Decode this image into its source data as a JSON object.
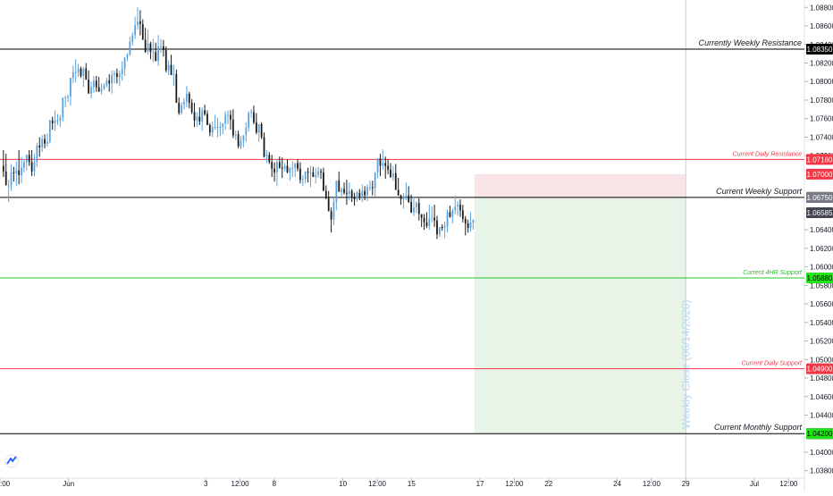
{
  "chart_data": {
    "type": "candlestick",
    "y_axis": {
      "ticks": [
        "1.08800",
        "1.08600",
        "1.08400",
        "1.08200",
        "1.08000",
        "1.07800",
        "1.07600",
        "1.07400",
        "1.07200",
        "1.06400",
        "1.06200",
        "1.06000",
        "1.05800",
        "1.05600",
        "1.05400",
        "1.05200",
        "1.05000",
        "1.04800",
        "1.04600",
        "1.04400",
        "1.04000",
        "1.03800"
      ],
      "range": [
        1.0372,
        1.0888
      ],
      "position": "right"
    },
    "x_axis": {
      "ticks": [
        {
          "label": ":00",
          "day": 0.0
        },
        {
          "label": "Jun",
          "day": 1.0
        },
        {
          "label": "3",
          "day": 3.0
        },
        {
          "label": "12:00",
          "day": 3.5
        },
        {
          "label": "8",
          "day": 4.0
        },
        {
          "label": "10",
          "day": 5.0
        },
        {
          "label": "12:00",
          "day": 5.5
        },
        {
          "label": "15",
          "day": 6.0
        },
        {
          "label": "17",
          "day": 7.0
        },
        {
          "label": "12:00",
          "day": 7.5
        },
        {
          "label": "22",
          "day": 8.0
        },
        {
          "label": "24",
          "day": 9.0
        },
        {
          "label": "12:00",
          "day": 9.5
        },
        {
          "label": "29",
          "day": 10.0
        },
        {
          "label": "Jul",
          "day": 11.0
        },
        {
          "label": "12:00",
          "day": 11.5
        }
      ],
      "range": [
        0.0,
        11.73
      ]
    },
    "levels": [
      {
        "label": "Currently Weekly Resistance",
        "price": 1.0835,
        "tag": "1.08350",
        "color": "#000000",
        "tag_bg": "#000000",
        "tag_fg": "#ffffff"
      },
      {
        "label": "Current Daily Resistance",
        "price": 1.0716,
        "tag": "1.07160",
        "color": "#f23645",
        "tag_bg": "#f23645",
        "tag_fg": "#ffffff"
      },
      {
        "label": "Current Weekly Support",
        "price": 1.0675,
        "tag": "1.06750",
        "color": "#000000",
        "tag_bg": "#000000",
        "tag_fg": "#ffffff"
      },
      {
        "label": "Current 4HR Support",
        "price": 1.0588,
        "tag": "1.05880",
        "color": "#22c52b",
        "tag_bg": "#22e41a",
        "tag_fg": "#000000"
      },
      {
        "label": "Current Daily Support",
        "price": 1.049,
        "tag": "1.04900",
        "color": "#f23645",
        "tag_bg": "#f23645",
        "tag_fg": "#ffffff"
      },
      {
        "label": "Current Monthly Support",
        "price": 1.042,
        "tag": "1.04200",
        "color": "#000000",
        "tag_bg": "#000000",
        "tag_fg": "#ffffff"
      }
    ],
    "price_tags": [
      {
        "price": 1.07,
        "tag": "1.07000",
        "bg": "#f23645",
        "fg": "#ffffff"
      },
      {
        "price": 1.0675,
        "tag": "1.06750",
        "bg": "#787b86",
        "fg": "#ffffff"
      },
      {
        "price": 1.06585,
        "tag": "1.06585",
        "bg": "#434651",
        "fg": "#ffffff"
      },
      {
        "price": 1.042,
        "tag": "1.04200",
        "bg": "#22e41a",
        "fg": "#000000"
      }
    ],
    "position_tool": {
      "entry": 1.0675,
      "stop": 1.07,
      "target": 1.042,
      "day_start": 6.92,
      "day_end": 10.0,
      "stop_color": "#f5d4d8",
      "target_color": "#d9ecd8"
    },
    "vertical_marker": {
      "label": "Weekly Close (06/14/2020)",
      "day": 10.0,
      "color": "#b7d4f0"
    },
    "candle_up_color": "#5ba3e0",
    "candle_down_color": "#1a1a1a",
    "candles": [
      [
        1.0709,
        1.0726,
        1.0697,
        1.0703
      ],
      [
        1.0703,
        1.0722,
        1.0688,
        1.0688
      ],
      [
        1.0688,
        1.0694,
        1.067,
        1.0688
      ],
      [
        1.0688,
        1.0711,
        1.0682,
        1.0702
      ],
      [
        1.0702,
        1.0708,
        1.0692,
        1.0701
      ],
      [
        1.0701,
        1.0714,
        1.0687,
        1.0704
      ],
      [
        1.0704,
        1.0726,
        1.0689,
        1.0699
      ],
      [
        1.0699,
        1.0719,
        1.069,
        1.0707
      ],
      [
        1.0707,
        1.0716,
        1.0702,
        1.0713
      ],
      [
        1.0713,
        1.0721,
        1.0704,
        1.0721
      ],
      [
        1.0721,
        1.0726,
        1.0709,
        1.0713
      ],
      [
        1.0713,
        1.0726,
        1.0698,
        1.0703
      ],
      [
        1.0703,
        1.0722,
        1.0698,
        1.0713
      ],
      [
        1.0713,
        1.0734,
        1.0708,
        1.0731
      ],
      [
        1.0731,
        1.074,
        1.0719,
        1.0729
      ],
      [
        1.0729,
        1.0742,
        1.0724,
        1.0738
      ],
      [
        1.0738,
        1.0743,
        1.0728,
        1.0733
      ],
      [
        1.0733,
        1.0744,
        1.073,
        1.0735
      ],
      [
        1.0735,
        1.0759,
        1.0733,
        1.0758
      ],
      [
        1.0758,
        1.0762,
        1.0748,
        1.0755
      ],
      [
        1.0755,
        1.0769,
        1.0747,
        1.0758
      ],
      [
        1.0758,
        1.0765,
        1.0753,
        1.0758
      ],
      [
        1.0758,
        1.0764,
        1.0751,
        1.0761
      ],
      [
        1.0761,
        1.0783,
        1.0757,
        1.0782
      ],
      [
        1.0782,
        1.0785,
        1.0772,
        1.0783
      ],
      [
        1.0783,
        1.0786,
        1.0778,
        1.0784
      ],
      [
        1.0784,
        1.0804,
        1.0774,
        1.0804
      ],
      [
        1.0804,
        1.0817,
        1.0798,
        1.081
      ],
      [
        1.081,
        1.0824,
        1.0799,
        1.081
      ],
      [
        1.081,
        1.0819,
        1.0805,
        1.0814
      ],
      [
        1.0814,
        1.0816,
        1.0804,
        1.0806
      ],
      [
        1.0806,
        1.0816,
        1.0794,
        1.0814
      ],
      [
        1.0814,
        1.082,
        1.0802,
        1.0802
      ],
      [
        1.0802,
        1.0812,
        1.0787,
        1.0787
      ],
      [
        1.0787,
        1.08,
        1.0782,
        1.0794
      ],
      [
        1.0794,
        1.0806,
        1.0788,
        1.0801
      ],
      [
        1.0801,
        1.0806,
        1.0789,
        1.0794
      ],
      [
        1.0794,
        1.0805,
        1.0789,
        1.0789
      ],
      [
        1.0789,
        1.0798,
        1.0786,
        1.0792
      ],
      [
        1.0792,
        1.0798,
        1.0791,
        1.0796
      ],
      [
        1.0796,
        1.0804,
        1.0794,
        1.0801
      ],
      [
        1.0801,
        1.0808,
        1.0789,
        1.0798
      ],
      [
        1.0798,
        1.0812,
        1.0787,
        1.0807
      ],
      [
        1.0807,
        1.0812,
        1.0798,
        1.0809
      ],
      [
        1.0809,
        1.0814,
        1.0798,
        1.0805
      ],
      [
        1.0805,
        1.0812,
        1.0795,
        1.0808
      ],
      [
        1.0808,
        1.0822,
        1.0801,
        1.0814
      ],
      [
        1.0814,
        1.0826,
        1.0806,
        1.0826
      ],
      [
        1.0826,
        1.0831,
        1.0822,
        1.0829
      ],
      [
        1.0829,
        1.0848,
        1.0828,
        1.0843
      ],
      [
        1.0843,
        1.0853,
        1.0839,
        1.085
      ],
      [
        1.085,
        1.087,
        1.0846,
        1.0861
      ],
      [
        1.0861,
        1.088,
        1.0856,
        1.0865
      ],
      [
        1.0865,
        1.0877,
        1.085,
        1.0862
      ],
      [
        1.0862,
        1.0867,
        1.0845,
        1.0845
      ],
      [
        1.0845,
        1.0858,
        1.0831,
        1.0832
      ],
      [
        1.0832,
        1.0856,
        1.0829,
        1.0841
      ],
      [
        1.0841,
        1.0843,
        1.0824,
        1.0832
      ],
      [
        1.0832,
        1.0846,
        1.0821,
        1.0832
      ],
      [
        1.0832,
        1.0842,
        1.0822,
        1.0822
      ],
      [
        1.0822,
        1.085,
        1.0817,
        1.0838
      ],
      [
        1.0838,
        1.0846,
        1.0831,
        1.0838
      ],
      [
        1.0838,
        1.0845,
        1.0827,
        1.0834
      ],
      [
        1.0834,
        1.0838,
        1.081,
        1.0812
      ],
      [
        1.0812,
        1.0823,
        1.0807,
        1.0818
      ],
      [
        1.0818,
        1.0829,
        1.0807,
        1.0807
      ],
      [
        1.0807,
        1.0818,
        1.0795,
        1.0808
      ],
      [
        1.0808,
        1.0813,
        1.0777,
        1.0777
      ],
      [
        1.0777,
        1.0783,
        1.0764,
        1.0766
      ],
      [
        1.0766,
        1.0778,
        1.0764,
        1.0775
      ],
      [
        1.0775,
        1.0782,
        1.077,
        1.0778
      ],
      [
        1.0778,
        1.0795,
        1.0772,
        1.0787
      ],
      [
        1.0787,
        1.0789,
        1.0771,
        1.0777
      ],
      [
        1.0777,
        1.0781,
        1.0765,
        1.0767
      ],
      [
        1.0767,
        1.0777,
        1.0751,
        1.0758
      ],
      [
        1.0758,
        1.0767,
        1.0751,
        1.0762
      ],
      [
        1.0762,
        1.0772,
        1.0753,
        1.0757
      ],
      [
        1.0757,
        1.0772,
        1.0747,
        1.0769
      ],
      [
        1.0769,
        1.0775,
        1.0763,
        1.0765
      ],
      [
        1.0765,
        1.0769,
        1.0753,
        1.0753
      ],
      [
        1.0753,
        1.0755,
        1.0741,
        1.0745
      ],
      [
        1.0745,
        1.0757,
        1.074,
        1.0751
      ],
      [
        1.0751,
        1.0764,
        1.0748,
        1.0751
      ],
      [
        1.0751,
        1.0761,
        1.074,
        1.0751
      ],
      [
        1.0751,
        1.0756,
        1.0741,
        1.0751
      ],
      [
        1.0751,
        1.0755,
        1.0743,
        1.0755
      ],
      [
        1.0755,
        1.0768,
        1.0748,
        1.0764
      ],
      [
        1.0764,
        1.0769,
        1.0754,
        1.0764
      ],
      [
        1.0764,
        1.0769,
        1.0748,
        1.0759
      ],
      [
        1.0759,
        1.077,
        1.0739,
        1.0742
      ],
      [
        1.0742,
        1.0747,
        1.0737,
        1.0743
      ],
      [
        1.0743,
        1.0747,
        1.0728,
        1.073
      ],
      [
        1.073,
        1.0741,
        1.0727,
        1.0736
      ],
      [
        1.0736,
        1.0742,
        1.0729,
        1.0742
      ],
      [
        1.0742,
        1.0756,
        1.0735,
        1.075
      ],
      [
        1.075,
        1.0768,
        1.0746,
        1.0766
      ],
      [
        1.0766,
        1.077,
        1.0761,
        1.0767
      ],
      [
        1.0767,
        1.0774,
        1.0754,
        1.0756
      ],
      [
        1.0756,
        1.0766,
        1.0743,
        1.0745
      ],
      [
        1.0745,
        1.0754,
        1.0735,
        1.0754
      ],
      [
        1.0754,
        1.0756,
        1.0738,
        1.074
      ],
      [
        1.074,
        1.0745,
        1.0718,
        1.0719
      ],
      [
        1.0719,
        1.0726,
        1.0712,
        1.0721
      ],
      [
        1.0721,
        1.0724,
        1.0711,
        1.0713
      ],
      [
        1.0713,
        1.0721,
        1.0697,
        1.0706
      ],
      [
        1.0706,
        1.0713,
        1.0692,
        1.0702
      ],
      [
        1.0702,
        1.0716,
        1.0687,
        1.0713
      ],
      [
        1.0713,
        1.0719,
        1.0706,
        1.0707
      ],
      [
        1.0707,
        1.0718,
        1.0696,
        1.0706
      ],
      [
        1.0706,
        1.0712,
        1.0703,
        1.0709
      ],
      [
        1.0709,
        1.0716,
        1.0701,
        1.0702
      ],
      [
        1.0702,
        1.0707,
        1.0693,
        1.0707
      ],
      [
        1.0707,
        1.0714,
        1.0697,
        1.0707
      ],
      [
        1.0707,
        1.0712,
        1.0697,
        1.0712
      ],
      [
        1.0712,
        1.0716,
        1.0703,
        1.0706
      ],
      [
        1.0706,
        1.0713,
        1.069,
        1.0694
      ],
      [
        1.0694,
        1.0699,
        1.0687,
        1.0695
      ],
      [
        1.0695,
        1.0703,
        1.069,
        1.0703
      ],
      [
        1.0703,
        1.0707,
        1.0691,
        1.0702
      ],
      [
        1.0702,
        1.0709,
        1.0686,
        1.0702
      ],
      [
        1.0702,
        1.0708,
        1.0697,
        1.0697
      ],
      [
        1.0697,
        1.0707,
        1.069,
        1.0699
      ],
      [
        1.0699,
        1.0708,
        1.0696,
        1.0703
      ],
      [
        1.0703,
        1.0706,
        1.0695,
        1.0702
      ],
      [
        1.0702,
        1.0707,
        1.0682,
        1.0682
      ],
      [
        1.0682,
        1.0688,
        1.0673,
        1.0674
      ],
      [
        1.0674,
        1.0682,
        1.066,
        1.066
      ],
      [
        1.066,
        1.0664,
        1.0637,
        1.0651
      ],
      [
        1.0651,
        1.0675,
        1.0645,
        1.067
      ],
      [
        1.067,
        1.0693,
        1.0661,
        1.0693
      ],
      [
        1.0693,
        1.0703,
        1.0681,
        1.0681
      ],
      [
        1.0681,
        1.0686,
        1.0676,
        1.0684
      ],
      [
        1.0684,
        1.0691,
        1.0678,
        1.068
      ],
      [
        1.068,
        1.0694,
        1.0667,
        1.0679
      ],
      [
        1.0679,
        1.0691,
        1.0672,
        1.0682
      ],
      [
        1.0682,
        1.0684,
        1.067,
        1.0675
      ],
      [
        1.0675,
        1.068,
        1.0666,
        1.0673
      ],
      [
        1.0673,
        1.0682,
        1.067,
        1.068
      ],
      [
        1.068,
        1.0684,
        1.0672,
        1.0676
      ],
      [
        1.0676,
        1.0689,
        1.067,
        1.0682
      ],
      [
        1.0682,
        1.0687,
        1.0672,
        1.0677
      ],
      [
        1.0677,
        1.0689,
        1.0671,
        1.0686
      ],
      [
        1.0686,
        1.0693,
        1.0682,
        1.0686
      ],
      [
        1.0686,
        1.0693,
        1.0677,
        1.0685
      ],
      [
        1.0685,
        1.0702,
        1.0676,
        1.0702
      ],
      [
        1.0702,
        1.0717,
        1.0696,
        1.0717
      ],
      [
        1.0717,
        1.0722,
        1.0698,
        1.0709
      ],
      [
        1.0709,
        1.0727,
        1.0705,
        1.0712
      ],
      [
        1.0712,
        1.0719,
        1.0695,
        1.0709
      ],
      [
        1.0709,
        1.0716,
        1.07,
        1.0705
      ],
      [
        1.0705,
        1.0712,
        1.0696,
        1.0697
      ],
      [
        1.0697,
        1.0709,
        1.0693,
        1.0701
      ],
      [
        1.0701,
        1.0711,
        1.0683,
        1.0683
      ],
      [
        1.0683,
        1.0696,
        1.0677,
        1.0677
      ],
      [
        1.0677,
        1.0678,
        1.0667,
        1.0673
      ],
      [
        1.0673,
        1.068,
        1.0663,
        1.0676
      ],
      [
        1.0676,
        1.0691,
        1.0672,
        1.0677
      ],
      [
        1.0677,
        1.0687,
        1.0669,
        1.067
      ],
      [
        1.067,
        1.0678,
        1.0658,
        1.0659
      ],
      [
        1.0659,
        1.0676,
        1.0655,
        1.0664
      ],
      [
        1.0664,
        1.0671,
        1.0658,
        1.0669
      ],
      [
        1.0669,
        1.0674,
        1.065,
        1.0657
      ],
      [
        1.0657,
        1.0657,
        1.0643,
        1.0653
      ],
      [
        1.0653,
        1.0657,
        1.064,
        1.0648
      ],
      [
        1.0648,
        1.0659,
        1.0642,
        1.0644
      ],
      [
        1.0644,
        1.0667,
        1.064,
        1.0652
      ],
      [
        1.0652,
        1.0665,
        1.0648,
        1.0653
      ],
      [
        1.0653,
        1.0667,
        1.0643,
        1.065
      ],
      [
        1.065,
        1.0655,
        1.063,
        1.0635
      ],
      [
        1.0635,
        1.0643,
        1.0632,
        1.0643
      ],
      [
        1.0643,
        1.0646,
        1.0639,
        1.0642
      ],
      [
        1.0642,
        1.0649,
        1.0631,
        1.0644
      ],
      [
        1.0644,
        1.0662,
        1.0637,
        1.0659
      ],
      [
        1.0659,
        1.0666,
        1.0653,
        1.0654
      ],
      [
        1.0654,
        1.0663,
        1.0647,
        1.0661
      ],
      [
        1.0661,
        1.0677,
        1.0657,
        1.0665
      ],
      [
        1.0665,
        1.0671,
        1.0655,
        1.0667
      ],
      [
        1.0667,
        1.0673,
        1.0654,
        1.0661
      ],
      [
        1.0661,
        1.0667,
        1.0648,
        1.0652
      ],
      [
        1.0652,
        1.0655,
        1.0634,
        1.0647
      ],
      [
        1.0647,
        1.0651,
        1.0637,
        1.0642
      ],
      [
        1.0642,
        1.0659,
        1.0638,
        1.0648
      ],
      [
        1.0648,
        1.0651,
        1.064,
        1.0651
      ]
    ]
  },
  "watermark_icon": "tradingview-logo-icon"
}
